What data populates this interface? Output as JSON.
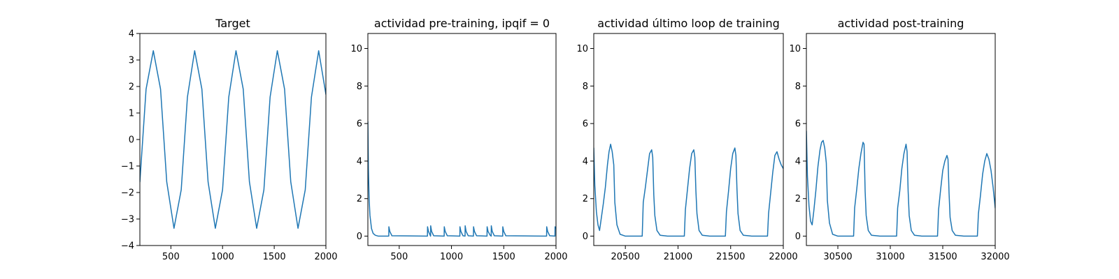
{
  "chart_data": [
    {
      "type": "line",
      "title": "Target",
      "xlabel": "",
      "ylabel": "",
      "xlim": [
        200,
        2000
      ],
      "ylim": [
        -4,
        4
      ],
      "xticks": [
        500,
        1000,
        1500,
        2000
      ],
      "yticks": [
        -4,
        -3,
        -2,
        -1,
        0,
        1,
        2,
        3,
        4
      ],
      "xtick_labels": [
        "500",
        "1000",
        "1500",
        "2000"
      ],
      "ytick_labels": [
        "−4",
        "−3",
        "−2",
        "−1",
        "0",
        "1",
        "2",
        "3",
        "4"
      ],
      "grid": false,
      "color": "#1f77b4",
      "x": [
        200,
        260,
        330,
        400,
        460,
        530,
        600,
        660,
        730,
        800,
        860,
        930,
        1000,
        1060,
        1130,
        1200,
        1260,
        1330,
        1400,
        1460,
        1530,
        1600,
        1660,
        1730,
        1800,
        1860,
        1930,
        2000
      ],
      "y": [
        -1.6,
        1.9,
        3.35,
        1.9,
        -1.6,
        -3.35,
        -1.9,
        1.6,
        3.35,
        1.9,
        -1.6,
        -3.35,
        -1.9,
        1.6,
        3.35,
        1.9,
        -1.6,
        -3.35,
        -1.9,
        1.6,
        3.35,
        1.9,
        -1.6,
        -3.35,
        -1.9,
        1.6,
        3.35,
        1.7
      ]
    },
    {
      "type": "line",
      "title": "actividad pre-training, ipqif = 0",
      "xlabel": "",
      "ylabel": "",
      "xlim": [
        200,
        2000
      ],
      "ylim": [
        -0.5,
        10.8
      ],
      "xticks": [
        500,
        1000,
        1500,
        2000
      ],
      "yticks": [
        0,
        2,
        4,
        6,
        8,
        10
      ],
      "xtick_labels": [
        "500",
        "1000",
        "1500",
        "2000"
      ],
      "ytick_labels": [
        "0",
        "2",
        "4",
        "6",
        "8",
        "10"
      ],
      "grid": false,
      "color": "#1f77b4",
      "x": [
        200,
        205,
        212,
        220,
        235,
        250,
        270,
        300,
        400,
        401,
        410,
        430,
        770,
        771,
        780,
        800,
        801,
        810,
        830,
        930,
        931,
        940,
        960,
        1080,
        1081,
        1090,
        1110,
        1130,
        1131,
        1140,
        1160,
        1210,
        1211,
        1220,
        1240,
        1340,
        1341,
        1350,
        1370,
        1380,
        1381,
        1390,
        1410,
        1490,
        1491,
        1500,
        1520,
        1910,
        1911,
        1920,
        1940,
        1990,
        1991,
        2000
      ],
      "y": [
        6.1,
        3.6,
        2.0,
        1.1,
        0.4,
        0.15,
        0.05,
        0.0,
        0.0,
        0.5,
        0.25,
        0.02,
        0.0,
        0.5,
        0.25,
        0.0,
        0.55,
        0.25,
        0.02,
        0.0,
        0.5,
        0.25,
        0.02,
        0.0,
        0.5,
        0.25,
        0.02,
        0.0,
        0.55,
        0.25,
        0.02,
        0.0,
        0.5,
        0.25,
        0.02,
        0.0,
        0.5,
        0.25,
        0.05,
        0.0,
        0.55,
        0.25,
        0.02,
        0.0,
        0.5,
        0.25,
        0.02,
        0.0,
        0.5,
        0.25,
        0.02,
        0.0,
        0.5,
        0.4
      ]
    },
    {
      "type": "line",
      "title": "actividad último loop de training",
      "xlabel": "",
      "ylabel": "",
      "xlim": [
        20200,
        22000
      ],
      "ylim": [
        -0.5,
        10.8
      ],
      "xticks": [
        20500,
        21000,
        21500,
        22000
      ],
      "yticks": [
        0,
        2,
        4,
        6,
        8,
        10
      ],
      "xtick_labels": [
        "20500",
        "21000",
        "21500",
        "22000"
      ],
      "ytick_labels": [
        "0",
        "2",
        "4",
        "6",
        "8",
        "10"
      ],
      "grid": false,
      "color": "#1f77b4",
      "x": [
        20200,
        20210,
        20225,
        20240,
        20255,
        20270,
        20290,
        20310,
        20330,
        20345,
        20360,
        20375,
        20390,
        20400,
        20420,
        20450,
        20500,
        20660,
        20670,
        20690,
        20710,
        20730,
        20750,
        20760,
        20770,
        20780,
        20800,
        20830,
        20900,
        21060,
        21070,
        21090,
        21110,
        21130,
        21150,
        21160,
        21170,
        21180,
        21200,
        21230,
        21300,
        21450,
        21460,
        21480,
        21500,
        21520,
        21540,
        21550,
        21560,
        21570,
        21590,
        21620,
        21700,
        21850,
        21860,
        21880,
        21900,
        21920,
        21940,
        21960,
        21980,
        22000
      ],
      "y": [
        4.7,
        2.7,
        1.3,
        0.6,
        0.3,
        0.9,
        1.7,
        2.6,
        3.8,
        4.5,
        4.9,
        4.5,
        3.8,
        1.8,
        0.6,
        0.1,
        0.0,
        0.0,
        1.8,
        2.6,
        3.5,
        4.4,
        4.6,
        4.2,
        2.2,
        1.1,
        0.3,
        0.05,
        0.0,
        0.0,
        1.4,
        2.5,
        3.6,
        4.4,
        4.6,
        4.2,
        2.4,
        1.2,
        0.3,
        0.05,
        0.0,
        0.0,
        1.3,
        2.4,
        3.6,
        4.4,
        4.7,
        4.3,
        2.5,
        1.2,
        0.3,
        0.05,
        0.0,
        0.0,
        1.2,
        2.3,
        3.4,
        4.3,
        4.5,
        4.1,
        3.8,
        3.6
      ]
    },
    {
      "type": "line",
      "title": "actividad post-training",
      "xlabel": "",
      "ylabel": "",
      "xlim": [
        30200,
        32000
      ],
      "ylim": [
        -0.5,
        10.8
      ],
      "xticks": [
        30500,
        31000,
        31500,
        32000
      ],
      "yticks": [
        0,
        2,
        4,
        6,
        8,
        10
      ],
      "xtick_labels": [
        "30500",
        "31000",
        "31500",
        "32000"
      ],
      "ytick_labels": [
        "0",
        "2",
        "4",
        "6",
        "8",
        "10"
      ],
      "grid": false,
      "color": "#1f77b4",
      "x": [
        30200,
        30210,
        30225,
        30240,
        30255,
        30270,
        30290,
        30310,
        30330,
        30345,
        30360,
        30375,
        30390,
        30400,
        30420,
        30450,
        30500,
        30650,
        30660,
        30680,
        30700,
        30720,
        30740,
        30750,
        30760,
        30770,
        30790,
        30820,
        30900,
        31060,
        31070,
        31090,
        31110,
        31130,
        31150,
        31160,
        31170,
        31180,
        31200,
        31230,
        31300,
        31450,
        31460,
        31480,
        31500,
        31520,
        31540,
        31550,
        31560,
        31570,
        31590,
        31620,
        31700,
        31830,
        31840,
        31860,
        31880,
        31900,
        31920,
        31940,
        31960,
        31980,
        32000
      ],
      "y": [
        5.6,
        3.2,
        1.6,
        0.8,
        0.6,
        1.3,
        2.4,
        3.7,
        4.6,
        5.0,
        5.1,
        4.7,
        3.9,
        1.9,
        0.7,
        0.1,
        0.0,
        0.0,
        1.5,
        2.5,
        3.6,
        4.4,
        5.0,
        4.9,
        2.4,
        1.1,
        0.3,
        0.05,
        0.0,
        0.0,
        1.5,
        2.4,
        3.6,
        4.4,
        4.9,
        4.5,
        2.4,
        1.1,
        0.3,
        0.05,
        0.0,
        0.0,
        1.4,
        2.5,
        3.5,
        4.0,
        4.3,
        4.1,
        2.3,
        1.0,
        0.3,
        0.05,
        0.0,
        0.0,
        1.2,
        2.2,
        3.3,
        4.0,
        4.4,
        4.1,
        3.5,
        2.6,
        1.5
      ]
    }
  ]
}
